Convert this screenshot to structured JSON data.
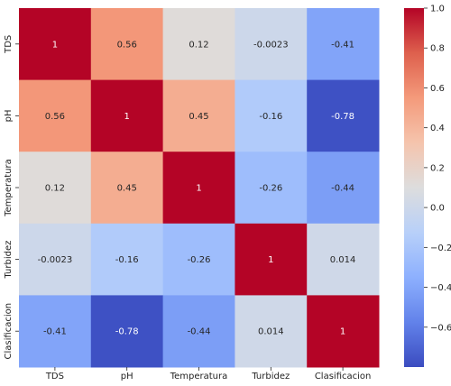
{
  "chart_data": {
    "type": "heatmap",
    "title": "",
    "xlabel": "",
    "ylabel": "",
    "rows": [
      "TDS",
      "pH",
      "Temperatura",
      "Turbidez",
      "Clasificacion"
    ],
    "columns": [
      "TDS",
      "pH",
      "Temperatura",
      "Turbidez",
      "Clasificacion"
    ],
    "values": [
      [
        1,
        0.56,
        0.12,
        -0.0023,
        -0.41
      ],
      [
        0.56,
        1,
        0.45,
        -0.16,
        -0.78
      ],
      [
        0.12,
        0.45,
        1,
        -0.26,
        -0.44
      ],
      [
        -0.0023,
        -0.16,
        -0.26,
        1,
        0.014
      ],
      [
        -0.41,
        -0.78,
        -0.44,
        0.014,
        1
      ]
    ],
    "cell_labels": [
      [
        "1",
        "0.56",
        "0.12",
        "-0.0023",
        "-0.41"
      ],
      [
        "0.56",
        "1",
        "0.45",
        "-0.16",
        "-0.78"
      ],
      [
        "0.12",
        "0.45",
        "1",
        "-0.26",
        "-0.44"
      ],
      [
        "-0.0023",
        "-0.16",
        "-0.26",
        "1",
        "0.014"
      ],
      [
        "-0.41",
        "-0.78",
        "-0.44",
        "0.014",
        "1"
      ]
    ],
    "colormap": "coolwarm",
    "vmin": -0.8,
    "vmax": 1.0,
    "colorbar": {
      "ticks": [
        1.0,
        0.8,
        0.6,
        0.4,
        0.2,
        0.0,
        -0.2,
        -0.4,
        -0.6
      ],
      "tick_labels": [
        "1.0",
        "0.8",
        "0.6",
        "0.4",
        "0.2",
        "0.0",
        "−0.2",
        "−0.4",
        "−0.6"
      ]
    }
  }
}
